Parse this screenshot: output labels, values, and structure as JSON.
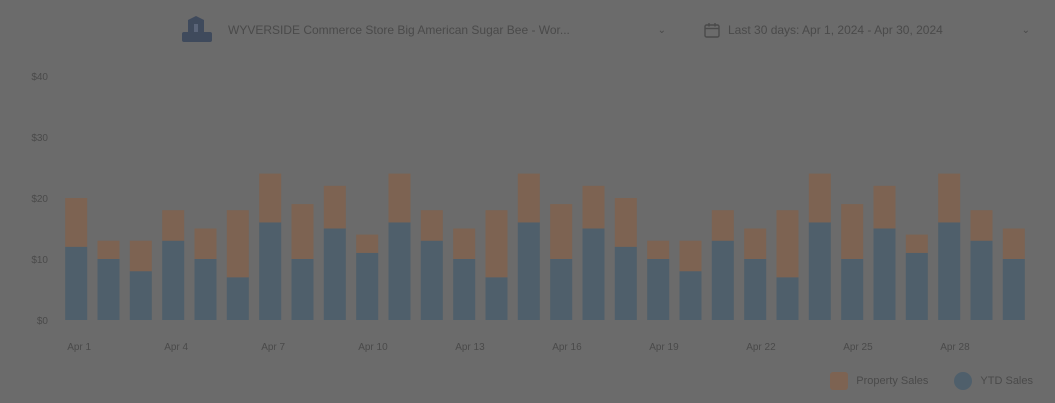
{
  "filters": {
    "store_select_label": "WYVERSIDE Commerce Store Big American Sugar Bee - Wor...",
    "date_range_label": "Last 30 days: Apr 1, 2024 - Apr 30, 2024"
  },
  "colors": {
    "background": "#6b6b6b",
    "series_top": "#7d6352",
    "series_bottom": "#4f5f6b"
  },
  "icons": {
    "logo": "store-logo-icon",
    "calendar": "calendar-icon",
    "chevron": "chevron-down-icon"
  },
  "chart_data": {
    "type": "bar",
    "stacked": true,
    "title": "",
    "xlabel": "",
    "ylabel": "",
    "ylim": [
      0,
      40
    ],
    "yticks": [
      "$0",
      "$10",
      "$20",
      "$30",
      "$40"
    ],
    "categories": [
      "Apr 1",
      "Apr 2",
      "Apr 3",
      "Apr 4",
      "Apr 5",
      "Apr 6",
      "Apr 7",
      "Apr 8",
      "Apr 9",
      "Apr 10",
      "Apr 11",
      "Apr 12",
      "Apr 13",
      "Apr 14",
      "Apr 15",
      "Apr 16",
      "Apr 17",
      "Apr 18",
      "Apr 19",
      "Apr 20",
      "Apr 21",
      "Apr 22",
      "Apr 23",
      "Apr 24",
      "Apr 25",
      "Apr 26",
      "Apr 27",
      "Apr 28",
      "Apr 29",
      "Apr 30"
    ],
    "xtick_labels": [
      "Apr 1",
      "",
      "",
      "Apr 4",
      "",
      "",
      "Apr 7",
      "",
      "",
      "Apr 10",
      "",
      "",
      "Apr 13",
      "",
      "",
      "Apr 16",
      "",
      "",
      "Apr 19",
      "",
      "",
      "Apr 22",
      "",
      "",
      "Apr 25",
      "",
      "",
      "Apr 28",
      "",
      ""
    ],
    "series": [
      {
        "name": "YTD Sales",
        "values": [
          12,
          10,
          8,
          13,
          10,
          7,
          16,
          10,
          15,
          11,
          16,
          13,
          10,
          7,
          16,
          10,
          15,
          12,
          10,
          8,
          13,
          10,
          7,
          16,
          10,
          15,
          11,
          16,
          13,
          10
        ]
      },
      {
        "name": "Property Sales",
        "values": [
          8,
          3,
          5,
          5,
          5,
          11,
          8,
          9,
          7,
          3,
          8,
          5,
          5,
          11,
          8,
          9,
          7,
          8,
          3,
          5,
          5,
          5,
          11,
          8,
          9,
          7,
          3,
          8,
          5,
          5
        ]
      }
    ],
    "legend_position": "bottom-right",
    "legend": [
      "Property Sales",
      "YTD Sales"
    ],
    "grid": false
  }
}
